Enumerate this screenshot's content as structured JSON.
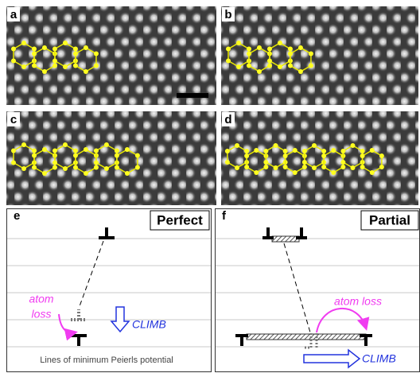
{
  "panels": [
    {
      "label": "a"
    },
    {
      "label": "b"
    },
    {
      "label": "c"
    },
    {
      "label": "d"
    }
  ],
  "diagram_e": {
    "label": "e",
    "title": "Perfect",
    "annotation": [
      "atom",
      "loss"
    ],
    "action": "CLIMB",
    "caption": "Lines of minimum Peierls potential"
  },
  "diagram_f": {
    "label": "f",
    "title": "Partial",
    "annotation": "atom loss",
    "action": "CLIMB"
  }
}
